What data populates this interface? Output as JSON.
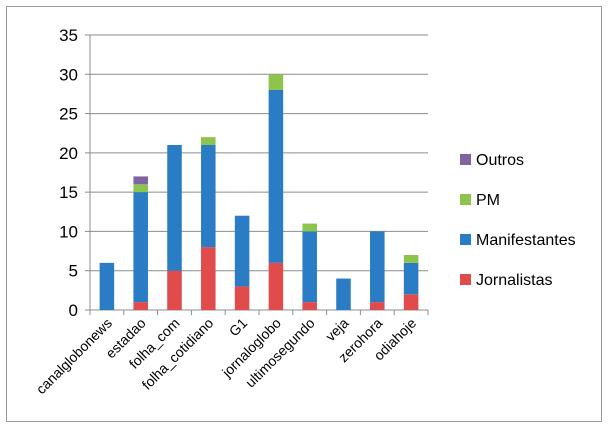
{
  "chart_data": {
    "type": "bar",
    "stacked": true,
    "categories": [
      "canalglobonews",
      "estadao",
      "folha_com",
      "folha_cotidiano",
      "G1",
      "jornaloglobo",
      "ultimosegundo",
      "veja",
      "zerohora",
      "odiahoje"
    ],
    "series": [
      {
        "name": "Jornalistas",
        "color": "#e04b4b",
        "values": [
          0,
          1,
          5,
          8,
          3,
          6,
          1,
          0,
          1,
          2
        ]
      },
      {
        "name": "Manifestantes",
        "color": "#2a7dc4",
        "values": [
          6,
          14,
          16,
          13,
          9,
          22,
          9,
          4,
          9,
          4
        ]
      },
      {
        "name": "PM",
        "color": "#8dc44e",
        "values": [
          0,
          1,
          0,
          1,
          0,
          2,
          1,
          0,
          0,
          1
        ]
      },
      {
        "name": "Outros",
        "color": "#8064a2",
        "values": [
          0,
          1,
          0,
          0,
          0,
          0,
          0,
          0,
          0,
          0
        ]
      }
    ],
    "yticks": [
      0,
      5,
      10,
      15,
      20,
      25,
      30,
      35
    ],
    "ylim": [
      0,
      35
    ],
    "grid": true,
    "legend_position": "right",
    "legend_order": [
      "Outros",
      "PM",
      "Manifestantes",
      "Jornalistas"
    ]
  }
}
